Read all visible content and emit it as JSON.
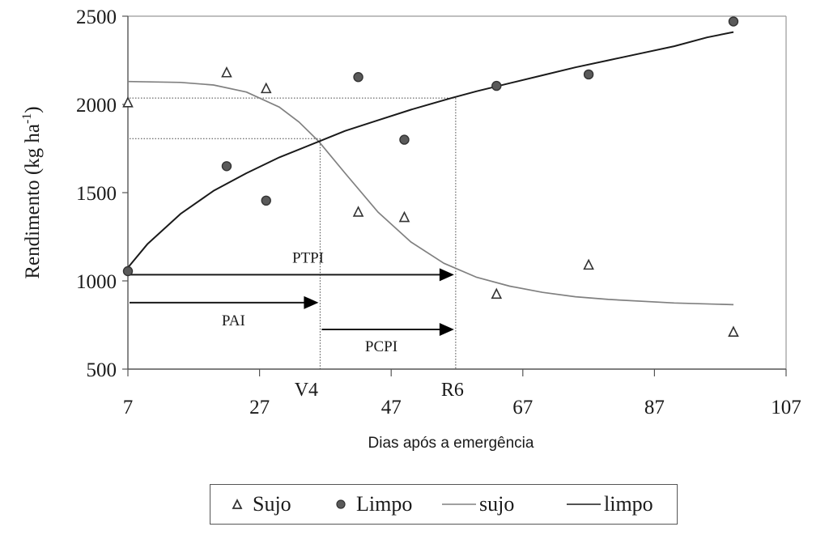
{
  "chart_data": {
    "type": "scatter",
    "title": "",
    "xlabel": "Dias após a emergência",
    "ylabel": "Rendimento (kg ha-1)",
    "ylabel_main": "Rendimento (kg ha",
    "ylabel_sup": "-1",
    "ylabel_close": ")",
    "xlim": [
      7,
      107
    ],
    "ylim": [
      500,
      2500
    ],
    "x_ticks": [
      7,
      27,
      47,
      67,
      87,
      107
    ],
    "y_ticks": [
      500,
      1000,
      1500,
      2000,
      2500
    ],
    "grid": false,
    "legend_position": "bottom",
    "series": [
      {
        "name": "Sujo",
        "kind": "points",
        "marker": "triangle-open",
        "x": [
          7,
          22,
          28,
          42,
          49,
          63,
          77,
          99
        ],
        "y": [
          2010,
          2180,
          2090,
          1390,
          1360,
          925,
          1090,
          710
        ]
      },
      {
        "name": "Limpo",
        "kind": "points",
        "marker": "circle-filled",
        "x": [
          7,
          22,
          28,
          42,
          49,
          63,
          77,
          99
        ],
        "y": [
          1055,
          1650,
          1455,
          2155,
          1800,
          2105,
          2170,
          2470
        ]
      },
      {
        "name": "sujo",
        "kind": "fitted-line",
        "color": "#808080",
        "x": [
          7,
          15,
          20,
          25,
          30,
          33,
          36,
          40,
          45,
          50,
          55,
          60,
          65,
          70,
          75,
          80,
          90,
          99
        ],
        "y": [
          2130,
          2125,
          2110,
          2070,
          1985,
          1900,
          1790,
          1610,
          1390,
          1220,
          1100,
          1020,
          970,
          935,
          910,
          895,
          875,
          865
        ]
      },
      {
        "name": "limpo",
        "kind": "fitted-line",
        "color": "#1a1a1a",
        "x": [
          7,
          10,
          15,
          20,
          25,
          30,
          36,
          40,
          45,
          50,
          56,
          60,
          65,
          70,
          75,
          80,
          85,
          90,
          95,
          99
        ],
        "y": [
          1075,
          1210,
          1380,
          1510,
          1610,
          1700,
          1790,
          1850,
          1910,
          1970,
          2035,
          2075,
          2120,
          2165,
          2210,
          2250,
          2290,
          2330,
          2380,
          2410
        ]
      }
    ],
    "reference_lines": {
      "horizontal_dotted": [
        2036,
        1806
      ],
      "vertical_dotted": [
        {
          "label": "V4",
          "x": 36.2
        },
        {
          "label": "R6",
          "x": 56.8
        }
      ]
    },
    "annotations": [
      {
        "label": "PTPI",
        "from_x": 7,
        "to_x": 56.8,
        "y": 1035
      },
      {
        "label": "PAI",
        "from_x": 7,
        "to_x": 36.2,
        "y": 877
      },
      {
        "label": "PCPI",
        "from_x": 36.2,
        "to_x": 56.8,
        "y": 725
      }
    ],
    "stage_labels": [
      "V4",
      "R6"
    ]
  },
  "legend": {
    "items": [
      {
        "label": "Sujo",
        "symbol": "triangle"
      },
      {
        "label": "Limpo",
        "symbol": "circle"
      },
      {
        "label": "sujo",
        "symbol": "line-gray"
      },
      {
        "label": "limpo",
        "symbol": "line-black"
      }
    ]
  },
  "colors": {
    "axis": "#555555",
    "sujo_line": "#808080",
    "limpo_line": "#1a1a1a",
    "marker_fill": "#5a5a5a"
  }
}
